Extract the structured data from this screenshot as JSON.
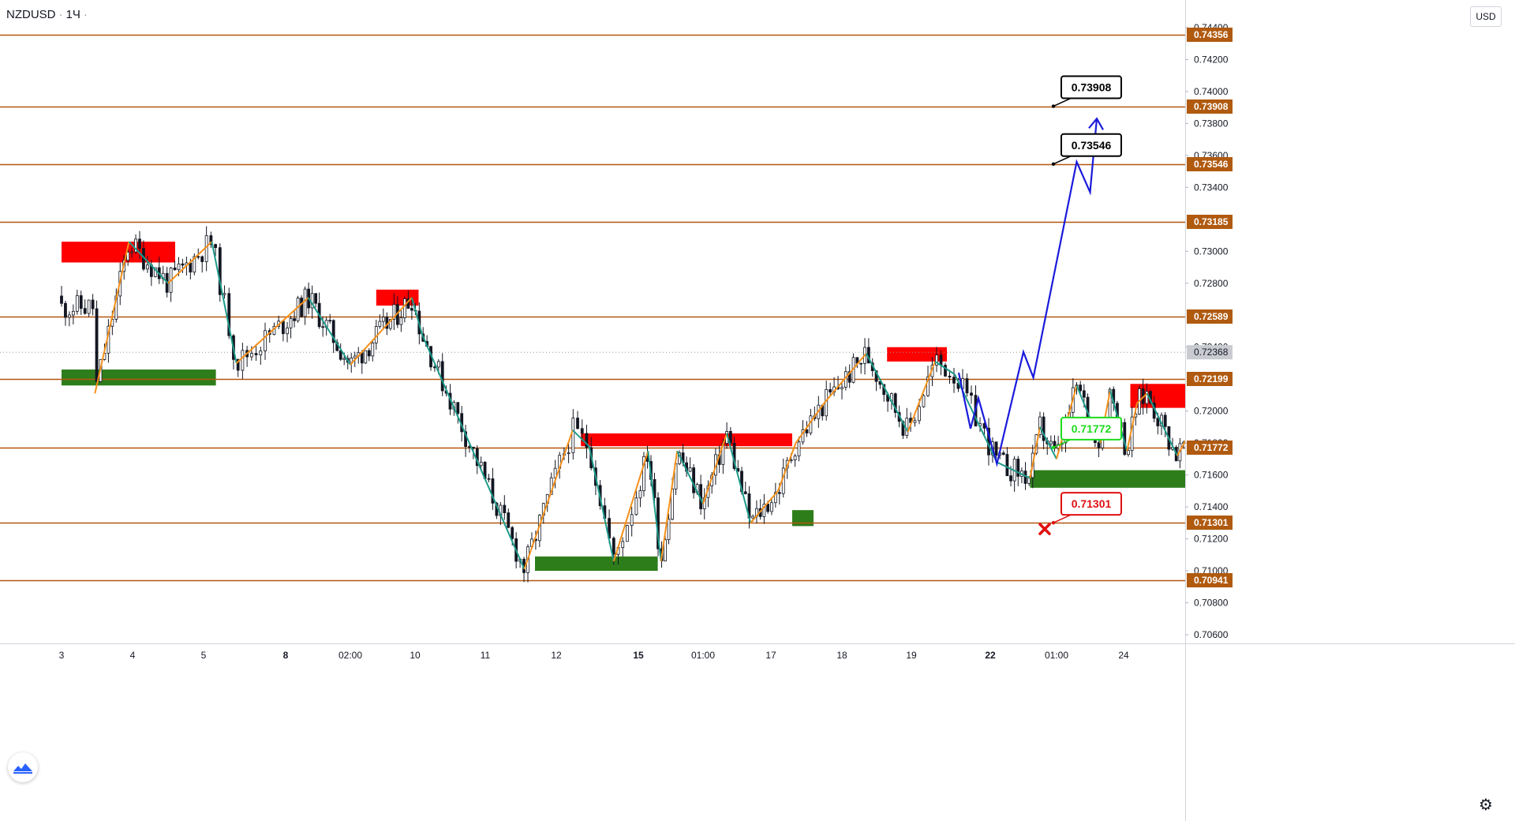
{
  "header": {
    "symbol": "NZDUSD",
    "interval": "1Ч",
    "currency_button": "USD"
  },
  "icons": {
    "logo": "tradingview-logo-icon",
    "settings": "gear-icon",
    "invalidation": "x-mark-icon"
  },
  "colors": {
    "level_line": "#b4570f",
    "level_label_bg": "#b05a10",
    "current_price_bg": "#c9cbd1",
    "supply_zone": "#ff0000",
    "demand_zone": "#2e7d1b",
    "zigzag_up": "#f5901a",
    "zigzag_down": "#1d9b8a",
    "projection": "#1a1adb",
    "target_callout_border": "#000000",
    "entry_callout": "#1ddb1d",
    "stop_callout": "#e01010"
  },
  "chart_data": {
    "type": "line",
    "title": "",
    "xlabel": "",
    "ylabel": "",
    "ylim": [
      0.7055,
      0.7452
    ],
    "x_ticks": [
      "3",
      "4",
      "5",
      "8",
      "02:00",
      "10",
      "11",
      "12",
      "15",
      "01:00",
      "17",
      "18",
      "19",
      "22",
      "01:00",
      "24"
    ],
    "x_ticks_bold": [
      "8",
      "15",
      "22"
    ],
    "y_ticks": [
      "0.74400",
      "0.74200",
      "0.74000",
      "0.73800",
      "0.73600",
      "0.73400",
      "0.73000",
      "0.72800",
      "0.72400",
      "0.72000",
      "0.71800",
      "0.71600",
      "0.71400",
      "0.71200",
      "0.71000",
      "0.70800",
      "0.70600"
    ],
    "current_price": "0.72368",
    "levels": [
      "0.74356",
      "0.73908",
      "0.73546",
      "0.73185",
      "0.72589",
      "0.72199",
      "0.71772",
      "0.71301",
      "0.70941"
    ],
    "callouts": [
      {
        "label": "0.73908",
        "kind": "target"
      },
      {
        "label": "0.73546",
        "kind": "target"
      },
      {
        "label": "0.71772",
        "kind": "entry"
      },
      {
        "label": "0.71301",
        "kind": "stop"
      }
    ],
    "supply_zones": [
      {
        "from": 0.0,
        "to": 1.6,
        "low": 0.7293,
        "high": 0.7306
      },
      {
        "from": 4.4,
        "to": 5.05,
        "low": 0.7266,
        "high": 0.7276
      },
      {
        "from": 7.3,
        "to": 10.3,
        "low": 0.7178,
        "high": 0.7186
      },
      {
        "from": 11.65,
        "to": 12.45,
        "low": 0.7231,
        "high": 0.724
      },
      {
        "from": 15.1,
        "to": 16.8,
        "low": 0.7202,
        "high": 0.7217
      },
      {
        "from": 18.0,
        "to": 18.6,
        "low": 0.726,
        "high": 0.727
      }
    ],
    "demand_zones": [
      {
        "from": 0.0,
        "to": 2.15,
        "low": 0.7216,
        "high": 0.7226
      },
      {
        "from": 6.7,
        "to": 8.3,
        "low": 0.71,
        "high": 0.7109
      },
      {
        "from": 10.3,
        "to": 10.6,
        "low": 0.7128,
        "high": 0.7138
      },
      {
        "from": 13.6,
        "to": 16.95,
        "low": 0.7152,
        "high": 0.7163
      }
    ],
    "series": [
      {
        "kind": "zigzag",
        "x": [
          0.47,
          0.95,
          1.5,
          2.1,
          2.4,
          3.35,
          4.0,
          4.95,
          5.1,
          6.55,
          7.2,
          7.4,
          7.7,
          8.15,
          8.35,
          8.6,
          9.0,
          9.35,
          9.7,
          10.1,
          10.35,
          10.75,
          11.35,
          11.95,
          12.3,
          12.55,
          13.1,
          13.6,
          13.75,
          14.0,
          14.3,
          14.65,
          14.8,
          15.05,
          15.2,
          15.35,
          15.8,
          16.1,
          16.55,
          16.95,
          17.35,
          17.7,
          18.0,
          18.2,
          18.6,
          18.85
        ],
        "y": [
          0.7211,
          0.7306,
          0.728,
          0.7306,
          0.723,
          0.7271,
          0.7229,
          0.7271,
          0.7248,
          0.7101,
          0.7188,
          0.7178,
          0.7106,
          0.7175,
          0.7106,
          0.7175,
          0.7142,
          0.7186,
          0.713,
          0.715,
          0.718,
          0.7205,
          0.7236,
          0.7187,
          0.7231,
          0.7223,
          0.7168,
          0.7158,
          0.719,
          0.717,
          0.7216,
          0.718,
          0.7213,
          0.7175,
          0.7205,
          0.7211,
          0.7172,
          0.7195,
          0.7189,
          0.7177,
          0.7159,
          0.7258,
          0.723,
          0.7259,
          0.7225,
          0.715
        ]
      },
      {
        "kind": "projection",
        "x": [
          12.6,
          12.75,
          12.85,
          13.1,
          13.5,
          13.65,
          14.3,
          14.5,
          14.6,
          14.75
        ],
        "y": [
          0.7224,
          0.7189,
          0.7208,
          0.7167,
          0.7237,
          0.7221,
          0.7356,
          0.7337,
          0.7383,
          0.7375
        ]
      }
    ]
  }
}
